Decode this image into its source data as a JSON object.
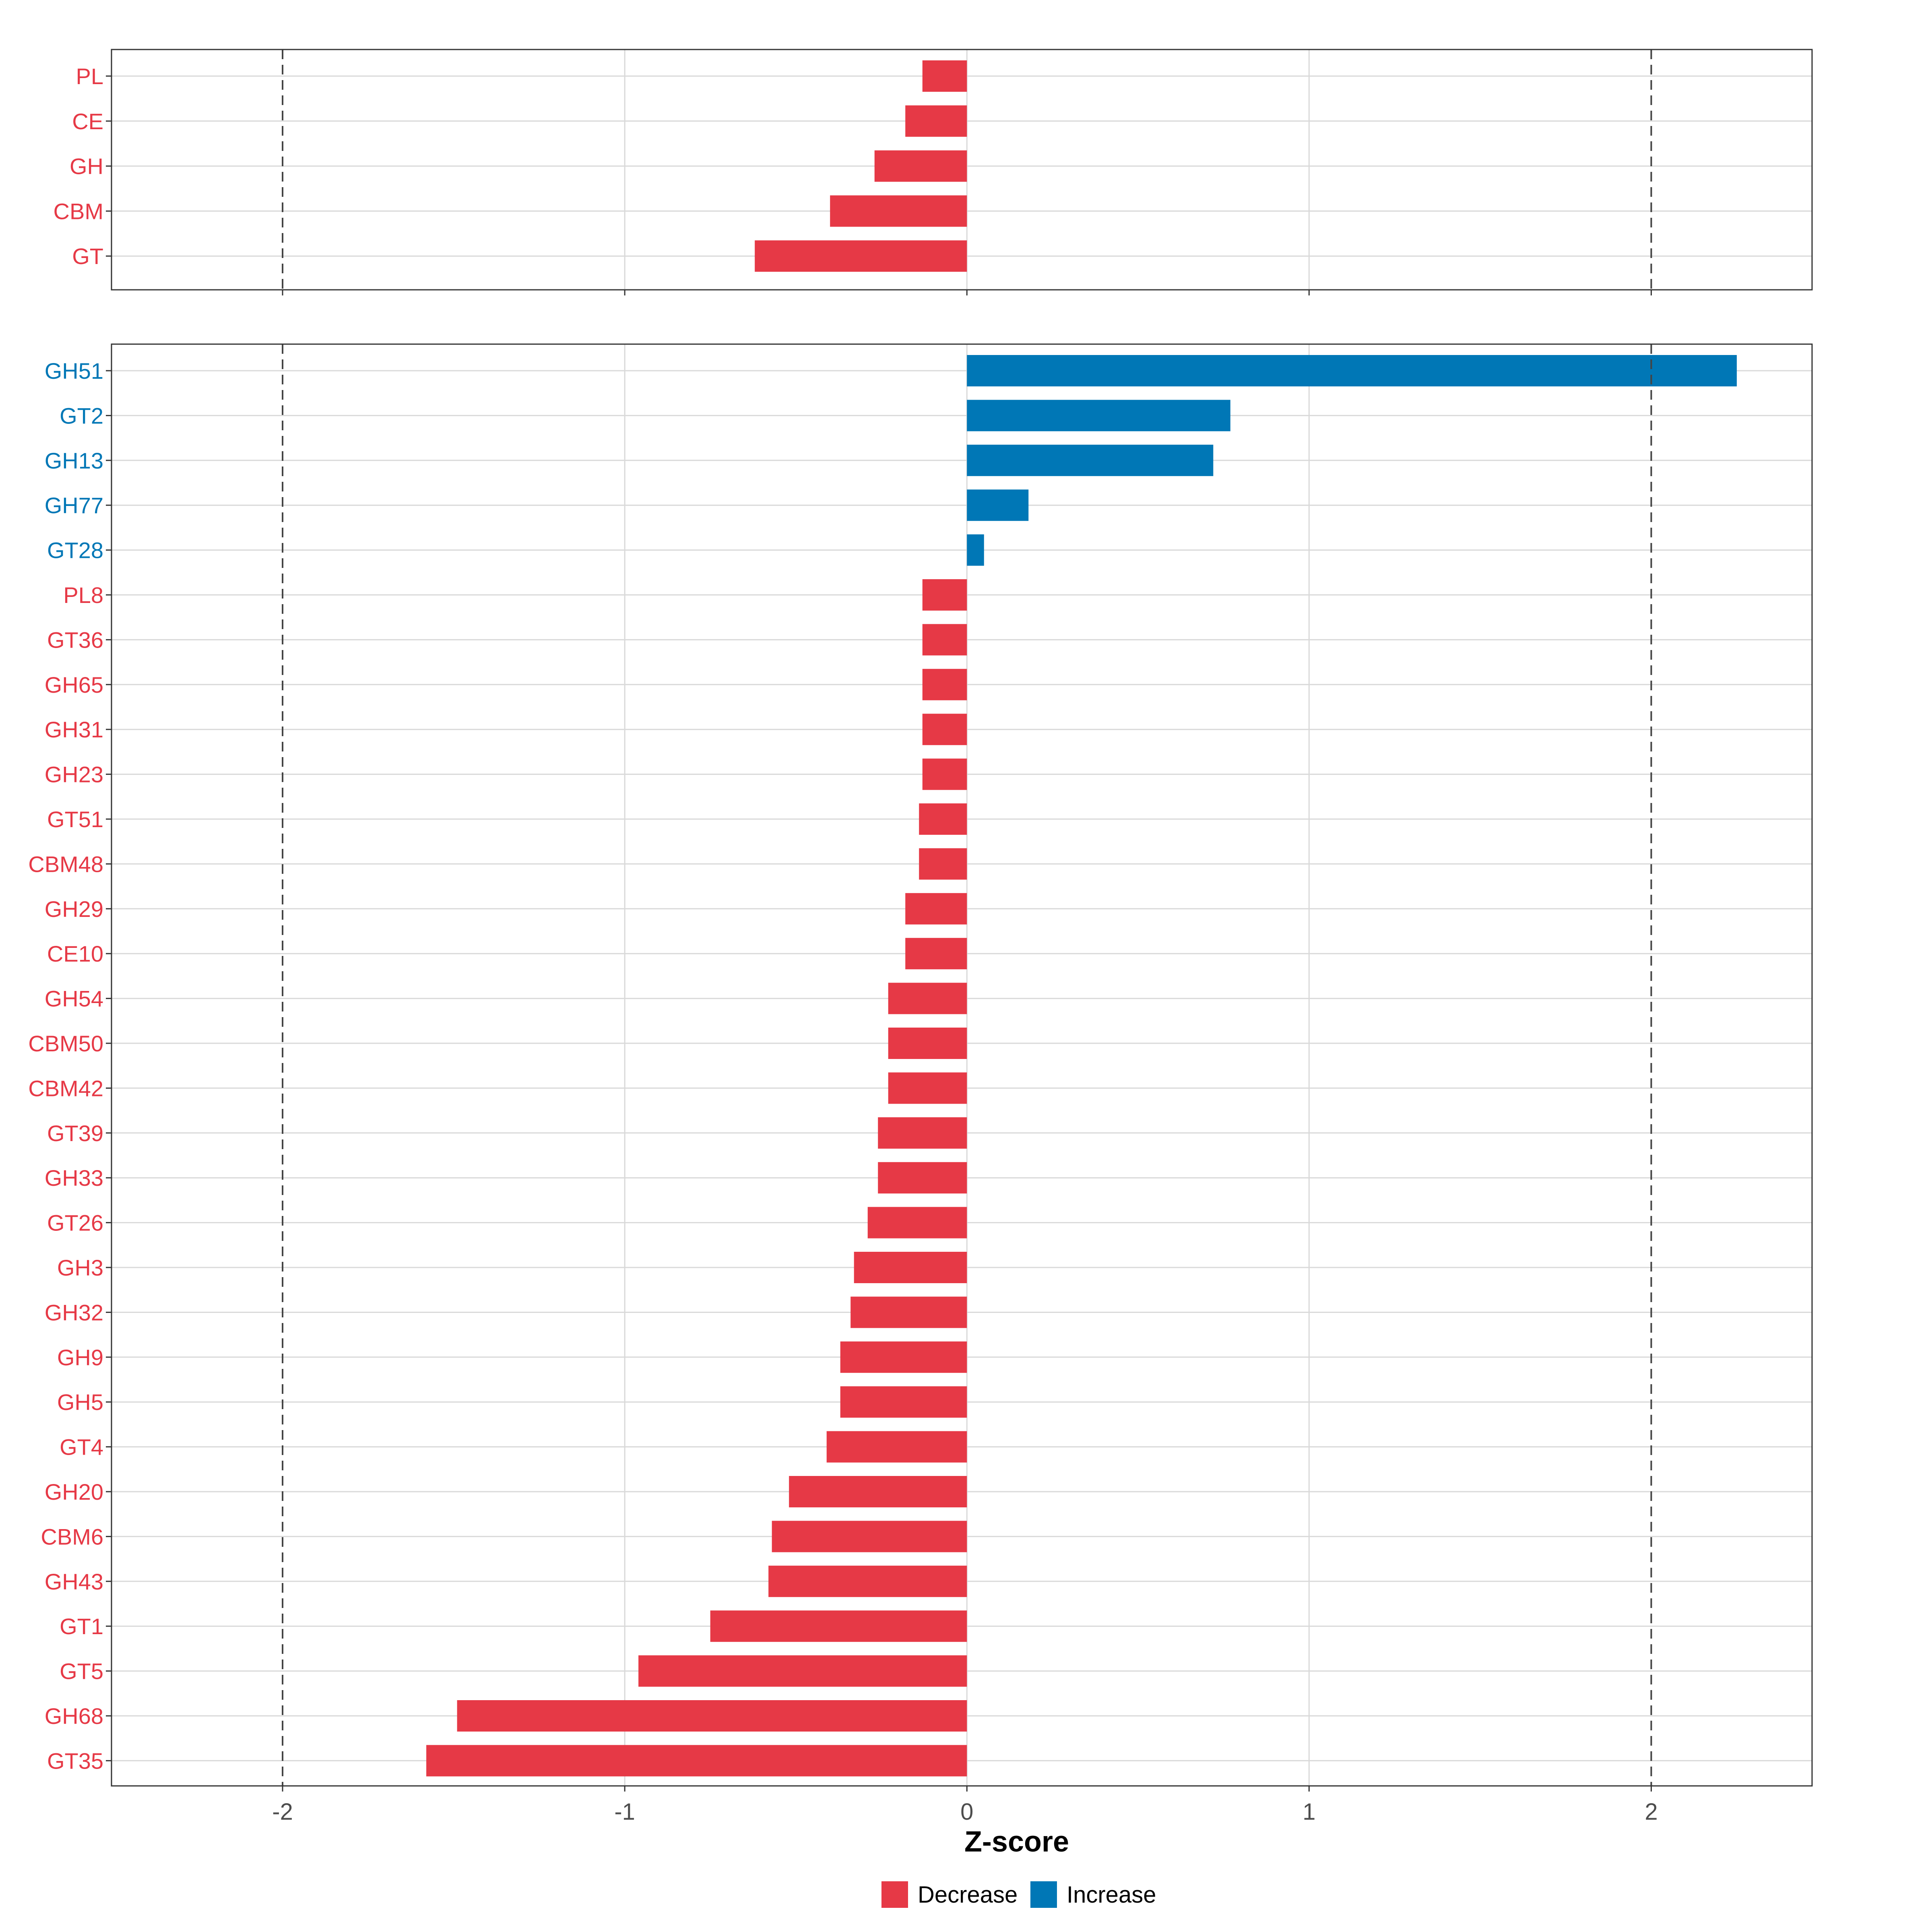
{
  "chart_data": [
    {
      "type": "bar",
      "orientation": "horizontal",
      "panel": "top",
      "categories": [
        "PL",
        "CE",
        "GH",
        "CBM",
        "GT"
      ],
      "values": [
        -0.13,
        -0.18,
        -0.27,
        -0.4,
        -0.62
      ],
      "directions": [
        "Decrease",
        "Decrease",
        "Decrease",
        "Decrease",
        "Decrease"
      ],
      "xlim": [
        -2.5,
        2.47
      ],
      "xticks": [
        -2,
        -1,
        0,
        1,
        2
      ],
      "reference_lines": [
        -2,
        2
      ],
      "grid": true
    },
    {
      "type": "bar",
      "orientation": "horizontal",
      "panel": "bottom",
      "categories": [
        "GH51",
        "GT2",
        "GH13",
        "GH77",
        "GT28",
        "PL8",
        "GT36",
        "GH65",
        "GH31",
        "GH23",
        "GT51",
        "CBM48",
        "GH29",
        "CE10",
        "GH54",
        "CBM50",
        "CBM42",
        "GT39",
        "GH33",
        "GT26",
        "GH3",
        "GH32",
        "GH9",
        "GH5",
        "GT4",
        "GH20",
        "CBM6",
        "GH43",
        "GT1",
        "GT5",
        "GH68",
        "GT35"
      ],
      "values": [
        2.25,
        0.77,
        0.72,
        0.18,
        0.05,
        -0.13,
        -0.13,
        -0.13,
        -0.13,
        -0.13,
        -0.14,
        -0.14,
        -0.18,
        -0.18,
        -0.23,
        -0.23,
        -0.23,
        -0.26,
        -0.26,
        -0.29,
        -0.33,
        -0.34,
        -0.37,
        -0.37,
        -0.41,
        -0.52,
        -0.57,
        -0.58,
        -0.75,
        -0.96,
        -1.49,
        -1.58
      ],
      "directions": [
        "Increase",
        "Increase",
        "Increase",
        "Increase",
        "Increase",
        "Decrease",
        "Decrease",
        "Decrease",
        "Decrease",
        "Decrease",
        "Decrease",
        "Decrease",
        "Decrease",
        "Decrease",
        "Decrease",
        "Decrease",
        "Decrease",
        "Decrease",
        "Decrease",
        "Decrease",
        "Decrease",
        "Decrease",
        "Decrease",
        "Decrease",
        "Decrease",
        "Decrease",
        "Decrease",
        "Decrease",
        "Decrease",
        "Decrease",
        "Decrease",
        "Decrease"
      ],
      "xlim": [
        -2.5,
        2.47
      ],
      "xticks": [
        -2,
        -1,
        0,
        1,
        2
      ],
      "xticklabels": [
        "-2",
        "-1",
        "0",
        "1",
        "2"
      ],
      "reference_lines": [
        -2,
        2
      ],
      "grid": true
    }
  ],
  "xlabel": "Z-score",
  "legend": {
    "placement": "bottom",
    "items": [
      {
        "label": "Decrease",
        "color": "#e63946"
      },
      {
        "label": "Increase",
        "color": "#0077b6"
      }
    ]
  },
  "colors": {
    "decrease": "#e63946",
    "increase": "#0077b6",
    "grid": "#d9d9d9",
    "panel_border": "#333333",
    "reference_line": "#444444"
  }
}
